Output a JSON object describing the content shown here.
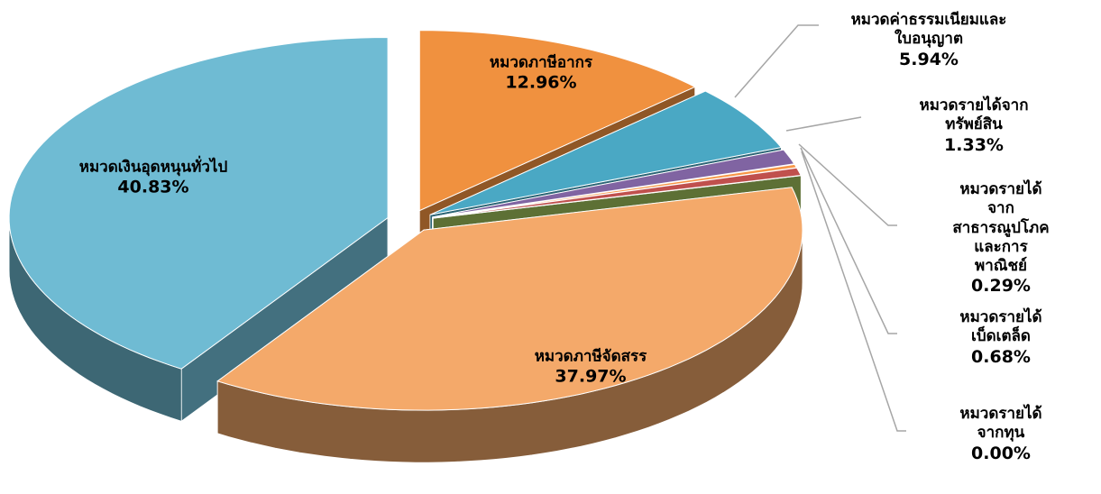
{
  "chart_data": {
    "type": "pie3d",
    "categories": [
      "หมวดภาษีอากร",
      "หมวดค่าธรรมเนียมและ\nใบอนุญาต",
      "หมวดรายได้จากทรัพย์สิน",
      "หมวดรายได้จาก\nสาธารณูปโภคและการ\nพาณิชย์",
      "หมวดรายได้เบ็ดเตล็ด",
      "หมวดรายได้จากทุน",
      "หมวดภาษีจัดสรร",
      "หมวดเงินอุดหนุนทั่วไป"
    ],
    "values": [
      12.96,
      5.94,
      1.33,
      0.29,
      0.68,
      0.0,
      37.97,
      40.83
    ],
    "value_labels": [
      "12.96%",
      "5.94%",
      "1.33%",
      "0.29%",
      "0.68%",
      "0.00%",
      "37.97%",
      "40.83%"
    ],
    "colors": [
      "#f0913f",
      "#4aa8c4",
      "#8064a2",
      "#f79646",
      "#c0504d",
      "#9bbb59",
      "#f4a96a",
      "#6fbbd3"
    ]
  }
}
